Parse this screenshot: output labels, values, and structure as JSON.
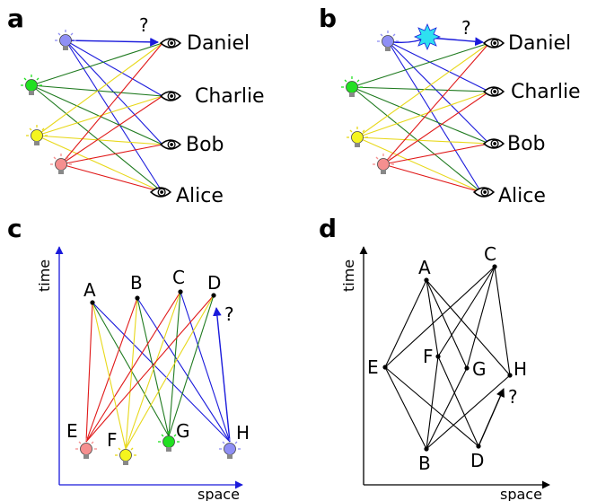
{
  "panels": {
    "a": {
      "label": "a",
      "observers": [
        "Daniel",
        "Charlie",
        "Bob",
        "Alice"
      ],
      "question": "?"
    },
    "b": {
      "label": "b",
      "observers": [
        "Daniel",
        "Charlie",
        "Bob",
        "Alice"
      ],
      "question": "?"
    },
    "c": {
      "label": "c",
      "xlabel": "space",
      "ylabel": "time",
      "events": [
        "A",
        "B",
        "C",
        "D",
        "E",
        "F",
        "G",
        "H"
      ],
      "question": "?"
    },
    "d": {
      "label": "d",
      "xlabel": "space",
      "ylabel": "time",
      "events": [
        "A",
        "B",
        "C",
        "D",
        "E",
        "F",
        "G",
        "H"
      ],
      "question": "?"
    }
  },
  "colors": {
    "blue": "#1a1adb",
    "green": "#1f7a1f",
    "yellow": "#e8d81a",
    "red": "#e01818",
    "bulb_blue": "#8f8ff5",
    "bulb_green": "#22e022",
    "bulb_yellow": "#f5f51e",
    "bulb_red": "#f58f8f",
    "star": "#2ee0f0"
  },
  "icons": {
    "source": "lightbulb-icon",
    "observer": "eye-icon",
    "collision": "star-burst-icon"
  }
}
